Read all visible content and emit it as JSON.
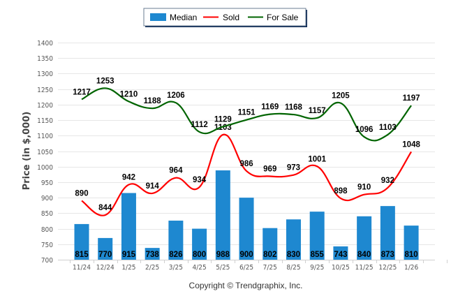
{
  "chart_data": {
    "type": "bar",
    "title": "",
    "xlabel": "",
    "ylabel": "Price (in $,000)",
    "ylim": [
      700,
      1400
    ],
    "yticks": [
      700,
      750,
      800,
      850,
      900,
      950,
      1000,
      1050,
      1100,
      1150,
      1200,
      1250,
      1300,
      1350,
      1400
    ],
    "grid": true,
    "legend_position": "top-center",
    "categories": [
      "11/24",
      "12/24",
      "1/25",
      "2/25",
      "3/25",
      "4/25",
      "5/25",
      "6/25",
      "7/25",
      "8/25",
      "9/25",
      "10/25",
      "11/25",
      "12/25",
      "1/26"
    ],
    "series": [
      {
        "name": "Median",
        "type": "bar",
        "color": "#1e88d0",
        "values": [
          815,
          770,
          915,
          738,
          826,
          800,
          988,
          900,
          802,
          830,
          855,
          743,
          840,
          873,
          810
        ]
      },
      {
        "name": "Sold",
        "type": "line",
        "color": "#ff0000",
        "values": [
          890,
          844,
          942,
          914,
          964,
          934,
          1103,
          986,
          969,
          973,
          1001,
          898,
          910,
          932,
          1048
        ]
      },
      {
        "name": "For Sale",
        "type": "line",
        "color": "#006400",
        "values": [
          1217,
          1253,
          1210,
          1188,
          1206,
          1112,
          1129,
          1151,
          1169,
          1168,
          1157,
          1205,
          1096,
          1103,
          1197
        ]
      }
    ],
    "footer": "Copyright © Trendgraphix, Inc."
  }
}
